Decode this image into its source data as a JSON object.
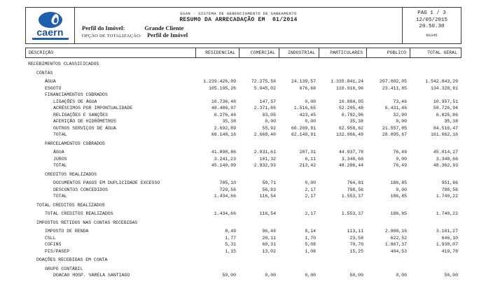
{
  "header": {
    "logo": {
      "brand": "caern"
    },
    "profile_label": "Perfil do Imóvel:",
    "profile_value": "Grande Cliente",
    "totalization_label": "OPÇÃO DE TOTALIZAÇÃO:",
    "totalization_value": "Perfil de Imóvel",
    "system_title": "GSAN - SISTEMA DE GERENCIAMENTO DE SANEAMENTO",
    "report_title": "RESUMO DA ARRECADAÇÃO EM  01/2014",
    "page_info": {
      "page": "PAG 1 / 3",
      "date": "12/05/2015",
      "time": "20.50.30",
      "report_code": "R0345"
    }
  },
  "table": {
    "columns": [
      "DESCRIÇÃO",
      "RESIDENCIAL",
      "COMERCIAL",
      "INDUSTRIAL",
      "PARTICULARES",
      "PÚBLICO",
      "TOTAL GERAL"
    ],
    "rows": [
      {
        "label": "RECEBIMENTOS CLASSIFICADOS",
        "indent": 0,
        "gap": true
      },
      {
        "label": "CONTAS",
        "indent": 1,
        "gap": true
      },
      {
        "label": "ÁGUA",
        "indent": 2,
        "gap": true,
        "values": [
          "1.239.426,09",
          "72.275,58",
          "24.139,57",
          "1.335.841,24",
          "207.002,05",
          "1.542.843,29"
        ]
      },
      {
        "label": "ESGOTO",
        "indent": 2,
        "values": [
          "105.195,26",
          "5.045,02",
          "676,68",
          "110.916,96",
          "23.411,85",
          "134.328,81"
        ]
      },
      {
        "label": "FINANCIAMENTOS COBRADOS",
        "indent": 2
      },
      {
        "label": "LIGAÇÕES DE ÁGUA",
        "indent": 3,
        "values": [
          "10.736,48",
          "147,57",
          "0,00",
          "10.884,05",
          "73,46",
          "10.957,51"
        ]
      },
      {
        "label": "ACRÉSCIMOS POR IMPONTUALIDADE",
        "indent": 3,
        "values": [
          "48.406,97",
          "2.371,86",
          "1.516,65",
          "52.295,48",
          "6.431,46",
          "58.726,94"
        ]
      },
      {
        "label": "RELIGAÇÕES E SANÇÕES",
        "indent": 3,
        "values": [
          "6.276,46",
          "93,05",
          "423,45",
          "6.792,96",
          "32,90",
          "6.825,86"
        ]
      },
      {
        "label": "AFERIÇÃO DE HIDRÔMETROS",
        "indent": 3,
        "values": [
          "35,38",
          "0,00",
          "0,00",
          "35,38",
          "0,00",
          "35,38"
        ]
      },
      {
        "label": "OUTROS SERVIÇOS DE ÁGUA",
        "indent": 3,
        "values": [
          "2.692,89",
          "55,92",
          "60.209,81",
          "62.958,62",
          "21.557,85",
          "84.516,47"
        ]
      },
      {
        "label": "TOTAL",
        "indent": 3,
        "values": [
          "68.148,18",
          "2.668,40",
          "62.149,91",
          "132.966,49",
          "28.095,67",
          "161.062,16"
        ]
      },
      {
        "label": "PARCELAMENTOS COBRADOS",
        "indent": 2,
        "gap": true
      },
      {
        "label": "ÁGUA",
        "indent": 3,
        "gap": true,
        "values": [
          "41.898,86",
          "2.831,61",
          "207,31",
          "44.937,78",
          "76,49",
          "45.014,27"
        ]
      },
      {
        "label": "JUROS",
        "indent": 3,
        "values": [
          "3.241,23",
          "101,32",
          "6,11",
          "3.348,66",
          "0,00",
          "3.348,66"
        ]
      },
      {
        "label": "TOTAL",
        "indent": 3,
        "values": [
          "45.140,09",
          "2.932,93",
          "213,42",
          "48.286,44",
          "76,49",
          "48.362,93"
        ]
      },
      {
        "label": "CREDITOS REALIZADOS",
        "indent": 2,
        "gap": true
      },
      {
        "label": "DOCUMENTOS PAGOS EM DUPLICIDADE EXCESSO",
        "indent": 3,
        "gap": true,
        "values": [
          "705,10",
          "59,71",
          "0,00",
          "764,81",
          "186,85",
          "951,66"
        ]
      },
      {
        "label": "DESCONTOS CONCEDIDOS",
        "indent": 3,
        "values": [
          "729,56",
          "56,83",
          "2,17",
          "788,56",
          "0,00",
          "788,56"
        ]
      },
      {
        "label": "TOTAL",
        "indent": 3,
        "values": [
          "1.434,66",
          "116,54",
          "2,17",
          "1.553,37",
          "186,85",
          "1.740,22"
        ]
      },
      {
        "label": "TOTAL CREDITOS REALIZADOS",
        "indent": 1,
        "gap": true
      },
      {
        "label": "TOTAL CREDITOS REALIZADOS",
        "indent": 2,
        "gap": true,
        "values": [
          "1.434,66",
          "116,54",
          "2,17",
          "1.553,37",
          "186,85",
          "1.740,22"
        ]
      },
      {
        "label": "IMPOSTOS RETIDOS NAS CONTAS RECEBIDAS",
        "indent": 1,
        "gap": true
      },
      {
        "label": "IMPOSTO DE RENDA",
        "indent": 2,
        "gap": true,
        "values": [
          "8,49",
          "96,48",
          "8,14",
          "113,11",
          "2.988,16",
          "3.101,27"
        ]
      },
      {
        "label": "CSLL",
        "indent": 2,
        "values": [
          "1,77",
          "20,11",
          "1,70",
          "23,58",
          "622,52",
          "646,10"
        ]
      },
      {
        "label": "COFINS",
        "indent": 2,
        "values": [
          "5,31",
          "60,31",
          "5,08",
          "70,70",
          "1.867,37",
          "1.938,07"
        ]
      },
      {
        "label": "PIS/PASEP",
        "indent": 2,
        "values": [
          "1,15",
          "13,02",
          "1,08",
          "15,25",
          "404,53",
          "419,78"
        ]
      },
      {
        "label": "DOAÇÕES RECEBIDAS EM CONTA",
        "indent": 1,
        "gap": true
      },
      {
        "label": "GRUPO CONTÁBIL",
        "indent": 2,
        "gap": true
      },
      {
        "label": "DOACAO HOSP. VARELA SANTIAGO",
        "indent": 3,
        "values": [
          "50,00",
          "0,00",
          "0,00",
          "50,00",
          "0,00",
          "50,00"
        ]
      }
    ]
  }
}
